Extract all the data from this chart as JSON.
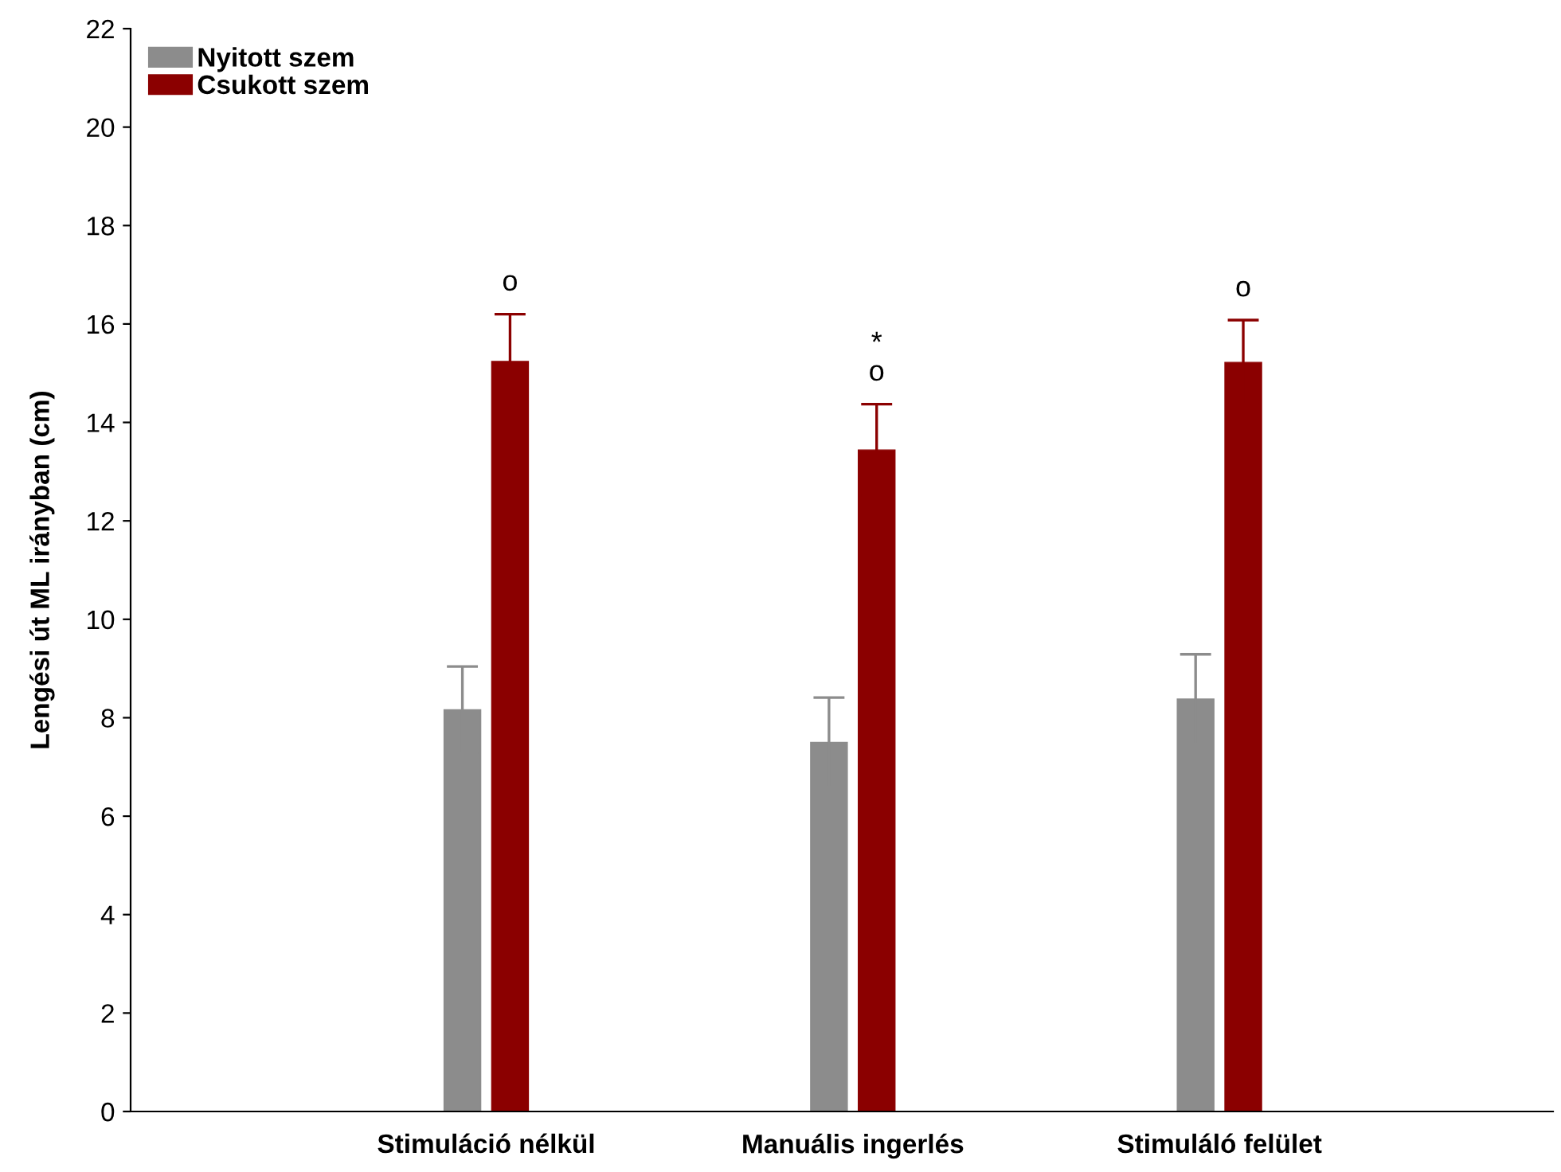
{
  "chart_data": {
    "type": "bar",
    "ylabel": "Lengési út ML irányban (cm)",
    "categories": [
      "Stimuláció nélkül",
      "Manuális ingerlés",
      "Stimuláló felület"
    ],
    "series": [
      {
        "name": "Nyitott szem",
        "color": "#8c8c8c",
        "values": [
          8.16,
          7.5,
          8.38
        ],
        "errors": [
          0.88,
          0.91,
          0.91
        ]
      },
      {
        "name": "Csukott szem",
        "color": "#8b0000",
        "values": [
          15.24,
          13.44,
          15.22
        ],
        "errors": [
          0.96,
          0.93,
          0.86
        ],
        "value_labels": [
          "o",
          "*\no",
          "o"
        ]
      }
    ],
    "ylim": [
      0,
      22
    ],
    "yticks": [
      0,
      2,
      4,
      6,
      8,
      10,
      12,
      14,
      16,
      18,
      20,
      22
    ],
    "grid": false,
    "legend": "top left"
  }
}
